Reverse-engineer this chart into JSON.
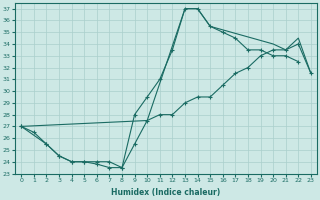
{
  "xlabel": "Humidex (Indice chaleur)",
  "xlim": [
    -0.5,
    23.5
  ],
  "ylim": [
    23,
    37.5
  ],
  "yticks": [
    23,
    24,
    25,
    26,
    27,
    28,
    29,
    30,
    31,
    32,
    33,
    34,
    35,
    36,
    37
  ],
  "xticks": [
    0,
    1,
    2,
    3,
    4,
    5,
    6,
    7,
    8,
    9,
    10,
    11,
    12,
    13,
    14,
    15,
    16,
    17,
    18,
    19,
    20,
    21,
    22,
    23
  ],
  "background_color": "#cde8e5",
  "grid_color": "#aacfcc",
  "line_color": "#1a6b63",
  "line1_x": [
    0,
    1,
    2,
    3,
    4,
    5,
    6,
    7,
    8,
    9,
    10,
    11,
    12,
    13,
    14,
    15,
    16,
    17,
    18,
    19,
    20,
    21,
    22
  ],
  "line1_y": [
    27,
    26.5,
    25.5,
    24.5,
    24,
    24,
    23.8,
    23.5,
    23.5,
    28,
    29.5,
    31,
    33.5,
    37,
    37,
    35.5,
    35,
    34.5,
    33.5,
    33.5,
    33,
    33,
    32.5
  ],
  "line2_x": [
    0,
    2,
    3,
    4,
    5,
    6,
    7,
    8,
    9,
    10,
    11,
    12,
    13,
    14,
    15,
    16,
    17,
    18,
    19,
    20,
    21,
    22,
    23
  ],
  "line2_y": [
    27,
    25.5,
    24.5,
    24,
    24,
    24,
    24,
    23.5,
    25.5,
    27.5,
    28,
    28,
    29,
    29.5,
    29.5,
    30.5,
    31.5,
    32,
    33,
    33.5,
    33.5,
    34,
    31.5
  ],
  "line3_x": [
    0,
    10,
    13,
    14,
    15,
    20,
    21,
    22,
    23
  ],
  "line3_y": [
    27,
    27.5,
    37,
    37,
    35.5,
    34,
    33.5,
    34.5,
    31.5
  ]
}
